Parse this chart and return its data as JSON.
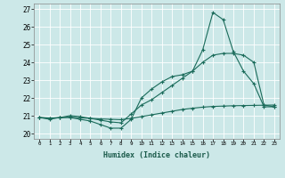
{
  "xlabel": "Humidex (Indice chaleur)",
  "xlim": [
    -0.5,
    23.5
  ],
  "ylim": [
    19.7,
    27.3
  ],
  "yticks": [
    20,
    21,
    22,
    23,
    24,
    25,
    26,
    27
  ],
  "xticks": [
    0,
    1,
    2,
    3,
    4,
    5,
    6,
    7,
    8,
    9,
    10,
    11,
    12,
    13,
    14,
    15,
    16,
    17,
    18,
    19,
    20,
    21,
    22,
    23
  ],
  "background_color": "#cce8e8",
  "line_color": "#1a6b5a",
  "grid_color": "#ffffff",
  "series": [
    {
      "x": [
        0,
        1,
        2,
        3,
        4,
        5,
        6,
        7,
        8,
        9,
        10,
        11,
        12,
        13,
        14,
        15,
        16,
        17,
        18,
        19,
        20,
        21,
        22,
        23
      ],
      "y": [
        20.9,
        20.8,
        20.9,
        20.9,
        20.8,
        20.7,
        20.5,
        20.3,
        20.3,
        20.8,
        22.0,
        22.5,
        22.9,
        23.2,
        23.3,
        23.5,
        24.7,
        26.8,
        26.4,
        24.6,
        23.5,
        22.8,
        21.5,
        21.5
      ]
    },
    {
      "x": [
        0,
        1,
        2,
        3,
        4,
        5,
        6,
        7,
        8,
        9,
        10,
        11,
        12,
        13,
        14,
        15,
        16,
        17,
        18,
        19,
        20,
        21,
        22,
        23
      ],
      "y": [
        20.9,
        20.85,
        20.9,
        21.0,
        20.95,
        20.85,
        20.75,
        20.65,
        20.6,
        21.1,
        21.6,
        21.9,
        22.3,
        22.7,
        23.1,
        23.5,
        24.0,
        24.4,
        24.5,
        24.5,
        24.4,
        24.0,
        21.6,
        21.5
      ]
    },
    {
      "x": [
        0,
        1,
        2,
        3,
        4,
        5,
        6,
        7,
        8,
        9,
        10,
        11,
        12,
        13,
        14,
        15,
        16,
        17,
        18,
        19,
        20,
        21,
        22,
        23
      ],
      "y": [
        20.9,
        20.87,
        20.88,
        20.92,
        20.88,
        20.85,
        20.82,
        20.8,
        20.78,
        20.85,
        20.95,
        21.05,
        21.15,
        21.25,
        21.35,
        21.42,
        21.48,
        21.52,
        21.54,
        21.56,
        21.57,
        21.58,
        21.59,
        21.6
      ]
    }
  ]
}
